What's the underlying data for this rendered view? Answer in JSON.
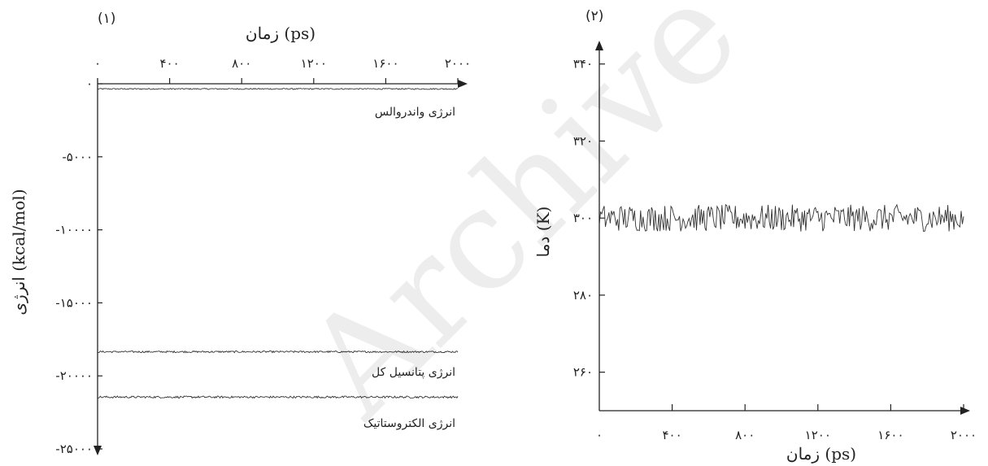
{
  "watermark": "Archive of SID",
  "chart_data": [
    {
      "type": "line",
      "panel_label": "(۱)",
      "xlabel": "زمان (ps)",
      "ylabel": "انرژی (kcal/mol)",
      "xlim": [
        0,
        2000
      ],
      "ylim": [
        -25000,
        0
      ],
      "x_ticks": [
        0,
        400,
        800,
        1200,
        1600,
        2000
      ],
      "x_tick_labels": [
        "۰",
        "۴۰۰",
        "۸۰۰",
        "۱۲۰۰",
        "۱۶۰۰",
        "۲۰۰۰"
      ],
      "y_ticks": [
        0,
        -5000,
        -10000,
        -15000,
        -20000,
        -25000
      ],
      "y_tick_labels": [
        "۰",
        "-۵۰۰۰",
        "-۱۰۰۰۰",
        "-۱۵۰۰۰",
        "-۲۰۰۰۰",
        "-۲۵۰۰۰"
      ],
      "series": [
        {
          "name": "انرژی واندروالس",
          "mean": -350,
          "noise": 40,
          "color": "#333333"
        },
        {
          "name": "انرژی پتانسیل کل",
          "mean": -18350,
          "noise": 60,
          "color": "#333333"
        },
        {
          "name": "انرژی الکتروستاتیک",
          "mean": -21450,
          "noise": 70,
          "color": "#333333"
        }
      ]
    },
    {
      "type": "line",
      "panel_label": "(۲)",
      "xlabel": "زمان (ps)",
      "ylabel": "دما (K)",
      "xlim": [
        0,
        2000
      ],
      "ylim": [
        250,
        345
      ],
      "x_ticks": [
        0,
        400,
        800,
        1200,
        1600,
        2000
      ],
      "x_tick_labels": [
        "۰",
        "۴۰۰",
        "۸۰۰",
        "۱۲۰۰",
        "۱۶۰۰",
        "۲۰۰۰"
      ],
      "y_ticks": [
        260,
        280,
        300,
        320,
        340
      ],
      "y_tick_labels": [
        "۲۶۰",
        "۲۸۰",
        "۳۰۰",
        "۳۲۰",
        "۳۴۰"
      ],
      "series": [
        {
          "mean": 300,
          "noise": 3.5,
          "color": "#333333"
        }
      ]
    }
  ]
}
